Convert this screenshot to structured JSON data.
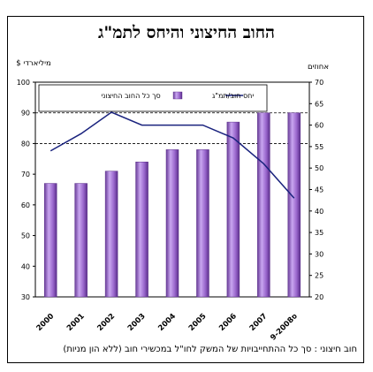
{
  "chart_data": {
    "type": "bar",
    "title": "החוב החיצוני והיחס לתמ\"ג",
    "categories": [
      "2000",
      "2001",
      "2002",
      "2003",
      "2004",
      "2005",
      "2006",
      "2007",
      "ס9-2008"
    ],
    "series": [
      {
        "name": "סך כל החוב החיצוני",
        "type": "bar",
        "axis": "left",
        "values": [
          67,
          67,
          71,
          74,
          78,
          78,
          87,
          90,
          90
        ]
      },
      {
        "name": "יחס חוב/תמ\"ג",
        "type": "line",
        "axis": "right",
        "values": [
          54,
          58,
          63,
          60,
          60,
          60,
          57,
          51,
          43
        ]
      }
    ],
    "y_left": {
      "label": "מיליארדי $",
      "min": 30,
      "max": 100,
      "step": 10
    },
    "y_right": {
      "label": "אחוזים",
      "min": 20,
      "max": 70,
      "step": 5
    },
    "grid": "dashed horizontal at 80 and 90",
    "legend": "top-inside",
    "colors": {
      "bar": "#9966cc",
      "line": "#1a237e"
    },
    "footnote": "חוב חיצוני : סך כל ההתחייבויות של המשק לחו\"ל במכשירי חוב (ללא הון מניות)"
  }
}
